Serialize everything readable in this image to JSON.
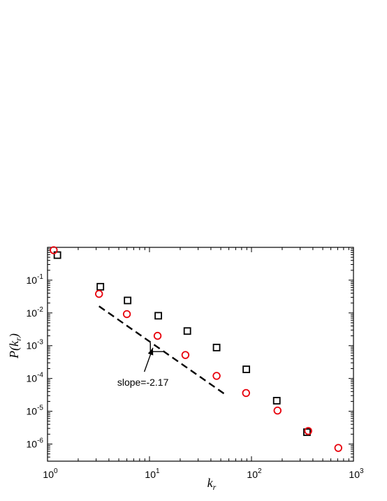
{
  "chart_data": {
    "type": "scatter",
    "xscale": "log",
    "yscale": "log",
    "xlim": [
      1,
      1000
    ],
    "ylim": [
      3e-07,
      1
    ],
    "xlabel": "k_r",
    "ylabel": "P(k_r)",
    "x_tick_labels": [
      {
        "value": 1,
        "base": "10",
        "exp": "0"
      },
      {
        "value": 10,
        "base": "10",
        "exp": "1"
      },
      {
        "value": 100,
        "base": "10",
        "exp": "2"
      },
      {
        "value": 1000,
        "base": "10",
        "exp": "3"
      }
    ],
    "y_tick_labels": [
      {
        "value": 1e-06,
        "base": "10",
        "exp": "-6"
      },
      {
        "value": 1e-05,
        "base": "10",
        "exp": "-5"
      },
      {
        "value": 0.0001,
        "base": "10",
        "exp": "-4"
      },
      {
        "value": 0.001,
        "base": "10",
        "exp": "-3"
      },
      {
        "value": 0.01,
        "base": "10",
        "exp": "-2"
      },
      {
        "value": 0.1,
        "base": "10",
        "exp": "-1"
      }
    ],
    "series": [
      {
        "marker": "square",
        "color": "#000000",
        "points": [
          {
            "x": 1.25,
            "y": 0.58
          },
          {
            "x": 3.3,
            "y": 0.063
          },
          {
            "x": 6.1,
            "y": 0.024
          },
          {
            "x": 12.2,
            "y": 0.0082
          },
          {
            "x": 23.5,
            "y": 0.0028
          },
          {
            "x": 45.5,
            "y": 0.00088
          },
          {
            "x": 89,
            "y": 0.00019
          },
          {
            "x": 177,
            "y": 2.1e-05
          },
          {
            "x": 350,
            "y": 2.3e-06
          }
        ]
      },
      {
        "marker": "circle",
        "color": "#e8000b",
        "points": [
          {
            "x": 1.15,
            "y": 0.82
          },
          {
            "x": 3.2,
            "y": 0.038
          },
          {
            "x": 6.0,
            "y": 0.0092
          },
          {
            "x": 12.0,
            "y": 0.002
          },
          {
            "x": 22.5,
            "y": 0.00052
          },
          {
            "x": 45.5,
            "y": 0.00012
          },
          {
            "x": 88.5,
            "y": 3.6e-05
          },
          {
            "x": 180,
            "y": 1.05e-05
          },
          {
            "x": 360,
            "y": 2.5e-06
          },
          {
            "x": 710,
            "y": 7.6e-07
          }
        ]
      }
    ],
    "fit_line": {
      "style": "dashed",
      "x": [
        3.2,
        55
      ],
      "y": [
        0.016,
        3.3e-05
      ]
    },
    "slope_triangle": {
      "x": [
        10.2,
        13.6
      ],
      "y": [
        0.00125,
        0.00066
      ]
    },
    "annotations": [
      {
        "text": "slope=-2.17",
        "arrow_to": {
          "x": 10.8,
          "y": 0.00086
        },
        "arrow_from": {
          "x": 8.9,
          "y": 0.00016
        }
      }
    ]
  }
}
